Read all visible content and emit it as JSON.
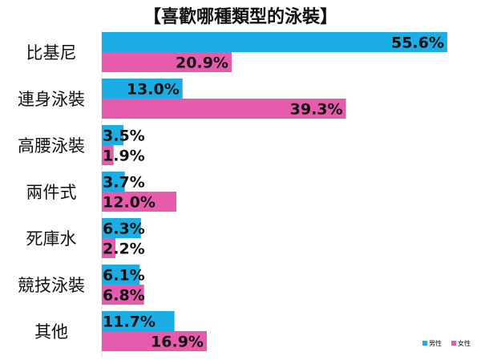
{
  "chart_data": {
    "type": "bar",
    "orientation": "horizontal",
    "title": "【喜歡哪種類型的泳裝】",
    "categories": [
      "比基尼",
      "連身泳裝",
      "高腰泳裝",
      "兩件式",
      "死庫水",
      "競技泳裝",
      "其他"
    ],
    "series": [
      {
        "name": "男性",
        "color": "#1aaee5",
        "values": [
          55.6,
          13.0,
          3.5,
          3.7,
          6.3,
          6.1,
          11.7
        ],
        "labels": [
          "55.6%",
          "13.0%",
          "3.5%",
          "3.7%",
          "6.3%",
          "6.1%",
          "11.7%"
        ]
      },
      {
        "name": "女性",
        "color": "#e65bac",
        "values": [
          20.9,
          39.3,
          1.9,
          12.0,
          2.2,
          6.8,
          16.9
        ],
        "labels": [
          "20.9%",
          "39.3%",
          "1.9%",
          "12.0%",
          "2.2%",
          "6.8%",
          "16.9%"
        ]
      }
    ],
    "xlim": [
      0,
      56
    ],
    "grid": false,
    "legend": "bottom-right"
  }
}
